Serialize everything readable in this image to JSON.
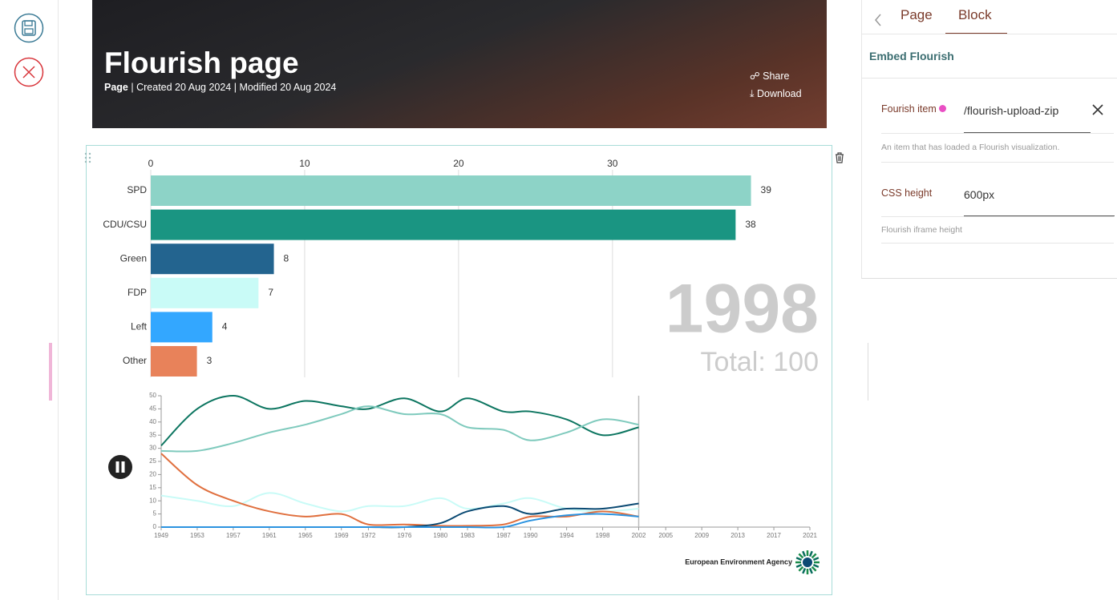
{
  "header": {
    "title": "Flourish page",
    "type": "Page",
    "meta": "| Created 20 Aug 2024 | Modified 20 Aug 2024",
    "actions": [
      "Share",
      "Download"
    ]
  },
  "sidebar": {
    "tabs": [
      "Page",
      "Block"
    ],
    "section": "Embed Flourish",
    "fields": [
      {
        "label": "Fourish item",
        "value": "/flourish-upload-zip",
        "help": "An item that has loaded a Flourish visualization."
      },
      {
        "label": "CSS height",
        "value": "600px",
        "help": "Flourish iframe height"
      }
    ]
  },
  "chart_data": [
    {
      "type": "bar",
      "orientation": "horizontal",
      "categories": [
        "SPD",
        "CDU/CSU",
        "Green",
        "FDP",
        "Left",
        "Other"
      ],
      "values": [
        39,
        38,
        8,
        7,
        4,
        3
      ],
      "colors": [
        "#8dd3c7",
        "#1a9582",
        "#23648f",
        "#c9fbf7",
        "#33a7ff",
        "#e8825a"
      ],
      "xlim": [
        0,
        43.4
      ],
      "xticks": [
        0,
        10,
        20,
        30
      ],
      "grid": true,
      "annotations": [
        "1998",
        "Total: 100"
      ]
    },
    {
      "type": "line",
      "x": [
        1949,
        1953,
        1957,
        1961,
        1965,
        1969,
        1972,
        1976,
        1980,
        1983,
        1987,
        1990,
        1994,
        1998,
        2002
      ],
      "series": [
        {
          "color": "#0c7560",
          "values": [
            31,
            45,
            50,
            45,
            48,
            46,
            45,
            49,
            44,
            49,
            44,
            44,
            41,
            35,
            38
          ]
        },
        {
          "color": "#7fcabd",
          "values": [
            29,
            29,
            32,
            36,
            39,
            43,
            46,
            43,
            43,
            38,
            37,
            33,
            36,
            41,
            39
          ]
        },
        {
          "color": "#c9fbf7",
          "values": [
            12,
            10,
            8,
            13,
            9,
            6,
            8,
            8,
            11,
            7,
            9,
            11,
            7,
            6,
            7
          ]
        },
        {
          "color": "#e0703f",
          "values": [
            28,
            16,
            10,
            6,
            4,
            5,
            1,
            1,
            0.5,
            0.5,
            1,
            4,
            4,
            6,
            4
          ]
        },
        {
          "color": "#0b4a73",
          "values": [
            0,
            0,
            0,
            0,
            0,
            0,
            0,
            0,
            1.5,
            6,
            8,
            5,
            7,
            7,
            9
          ]
        },
        {
          "color": "#2b93e0",
          "values": [
            0,
            0,
            0,
            0,
            0,
            0,
            0,
            0,
            0,
            0,
            0,
            2.5,
            4.5,
            5,
            4
          ]
        }
      ],
      "xlim": [
        1949,
        2021
      ],
      "ylim": [
        0,
        50
      ],
      "xticks": [
        1949,
        1953,
        1957,
        1961,
        1965,
        1969,
        1972,
        1976,
        1980,
        1983,
        1987,
        1990,
        1994,
        1998,
        2002,
        2005,
        2009,
        2013,
        2017,
        2021
      ],
      "yticks": [
        0,
        5,
        10,
        15,
        20,
        25,
        30,
        35,
        40,
        45,
        50
      ]
    }
  ],
  "credit": "European Environment Agency"
}
